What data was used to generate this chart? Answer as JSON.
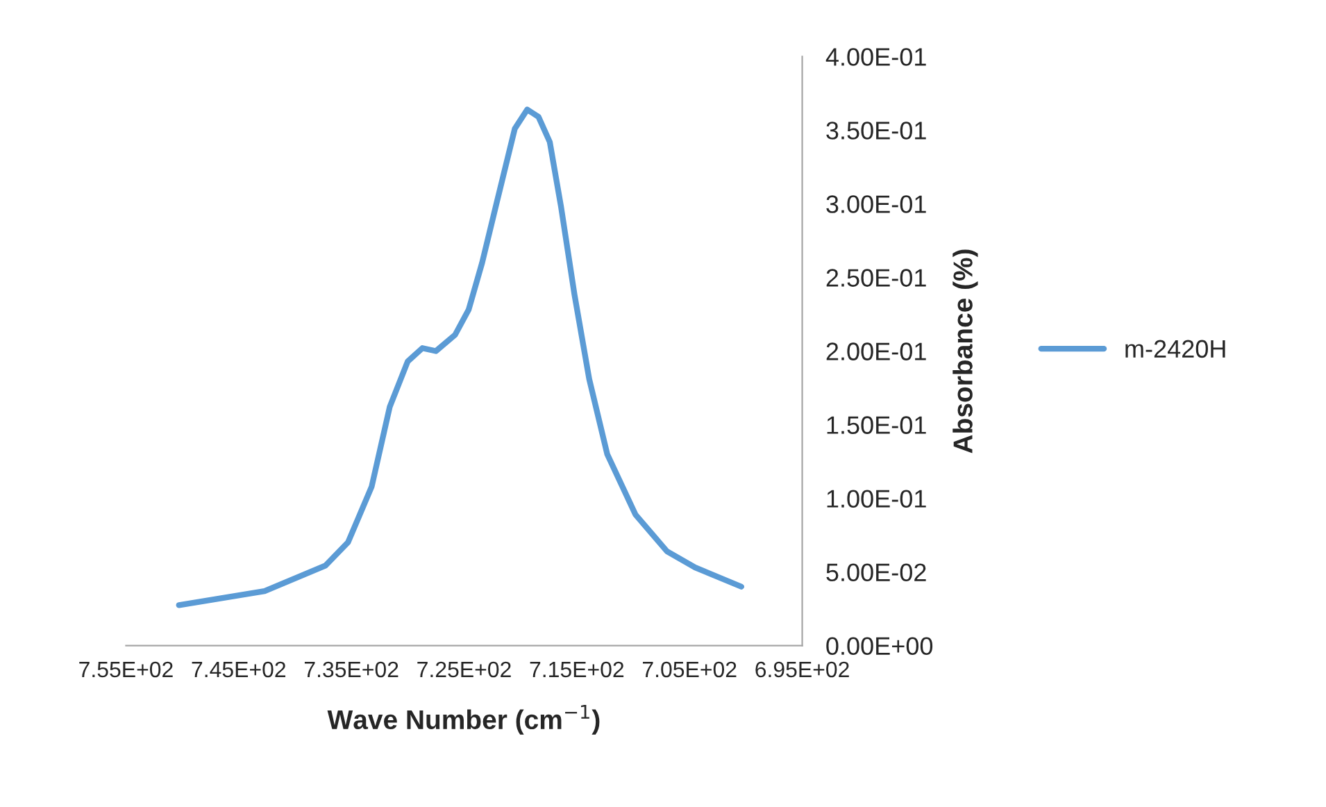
{
  "chart_data": {
    "type": "line",
    "xlabel": "Wave Number (cm$^{−1}$)",
    "ylabel": "Absorbance (%)",
    "x": [
      750.3,
      742.7,
      737.3,
      735.3,
      733.2,
      731.6,
      730.0,
      728.7,
      727.5,
      725.8,
      724.6,
      723.4,
      722.1,
      720.5,
      719.4,
      718.4,
      717.4,
      716.4,
      715.2,
      713.9,
      712.3,
      709.8,
      707.0,
      704.5,
      700.4
    ],
    "series": [
      {
        "name": "m-2420H",
        "color": "#5b9bd5",
        "values": [
          0.0275,
          0.037,
          0.0543,
          0.0701,
          0.108,
          0.162,
          0.193,
          0.202,
          0.2,
          0.211,
          0.228,
          0.26,
          0.301,
          0.351,
          0.364,
          0.359,
          0.342,
          0.298,
          0.238,
          0.181,
          0.13,
          0.089,
          0.064,
          0.053,
          0.04
        ]
      }
    ],
    "xlim": [
      755,
      695
    ],
    "xticks": [
      {
        "value": 755,
        "label": "7.55E+02"
      },
      {
        "value": 745,
        "label": "7.45E+02"
      },
      {
        "value": 735,
        "label": "7.35E+02"
      },
      {
        "value": 725,
        "label": "7.25E+02"
      },
      {
        "value": 715,
        "label": "7.15E+02"
      },
      {
        "value": 705,
        "label": "7.05E+02"
      },
      {
        "value": 695,
        "label": "6.95E+02"
      }
    ],
    "ylim": [
      0,
      0.4
    ],
    "yticks": [
      {
        "value": 0,
        "label": "0.00E+00"
      },
      {
        "value": 0.05,
        "label": "5.00E-02"
      },
      {
        "value": 0.1,
        "label": "1.00E-01"
      },
      {
        "value": 0.15,
        "label": "1.50E-01"
      },
      {
        "value": 0.2,
        "label": "2.00E-01"
      },
      {
        "value": 0.25,
        "label": "2.50E-01"
      },
      {
        "value": 0.3,
        "label": "3.00E-01"
      },
      {
        "value": 0.35,
        "label": "3.50E-01"
      },
      {
        "value": 0.4,
        "label": "4.00E-01"
      }
    ],
    "grid": false,
    "legend": "right",
    "marker": "none",
    "line_style": "solid"
  }
}
